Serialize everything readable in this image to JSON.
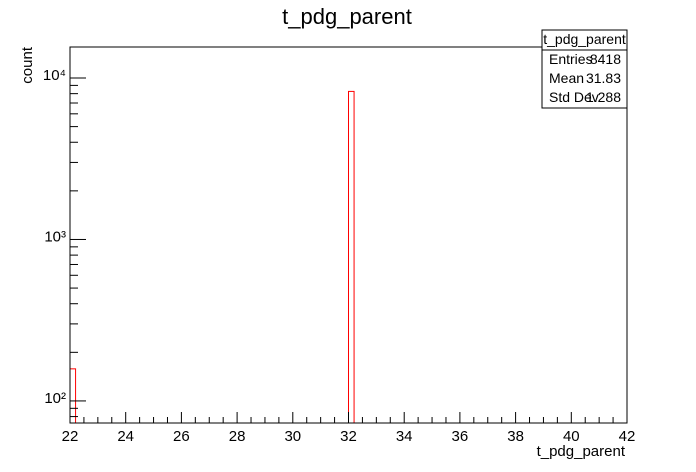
{
  "chart_data": {
    "type": "histogram",
    "title": "t_pdg_parent",
    "x_label": "t_pdg_parent",
    "y_label": "count",
    "bins": [
      22,
      22.2,
      22.4,
      22.6,
      22.8,
      23,
      23.2,
      23.4,
      23.6,
      23.8,
      24,
      24.2,
      24.4,
      24.6,
      24.8,
      25,
      25.2,
      25.4,
      25.6,
      25.8,
      26,
      26.2,
      26.4,
      26.6,
      26.8,
      27,
      27.2,
      27.4,
      27.6,
      27.8,
      28,
      28.2,
      28.4,
      28.6,
      28.8,
      29,
      29.2,
      29.4,
      29.6,
      29.8,
      30,
      30.2,
      30.4,
      30.6,
      30.8,
      31,
      31.2,
      31.4,
      31.6,
      31.8,
      32,
      32.2,
      32.4,
      32.6,
      32.8,
      33,
      33.2,
      33.4,
      33.6,
      33.8,
      34,
      34.2,
      34.4,
      34.6,
      34.8,
      35,
      35.2,
      35.4,
      35.6,
      35.8,
      36,
      36.2,
      36.4,
      36.6,
      36.8,
      37,
      37.2,
      37.4,
      37.6,
      37.8,
      38,
      38.2,
      38.4,
      38.6,
      38.8,
      39,
      39.2,
      39.4,
      39.6,
      39.8,
      40,
      40.2,
      40.4,
      40.6,
      40.8,
      41,
      41.2,
      41.4,
      41.6,
      41.8,
      42
    ],
    "values": [
      158,
      0,
      0,
      0,
      0,
      0,
      0,
      0,
      0,
      0,
      0,
      0,
      0,
      0,
      0,
      0,
      0,
      0,
      0,
      0,
      0,
      0,
      0,
      0,
      0,
      0,
      0,
      0,
      0,
      0,
      0,
      0,
      0,
      0,
      0,
      0,
      0,
      0,
      0,
      0,
      0,
      0,
      0,
      0,
      0,
      0,
      0,
      0,
      0,
      0,
      8260,
      0,
      0,
      0,
      0,
      0,
      0,
      0,
      0,
      0,
      0,
      0,
      0,
      0,
      0,
      0,
      0,
      0,
      0,
      0,
      0,
      0,
      0,
      0,
      0,
      0,
      0,
      0,
      0,
      0,
      0,
      0,
      0,
      0,
      0,
      0,
      0,
      0,
      0,
      0,
      0,
      0,
      0,
      0,
      0,
      0,
      0,
      0,
      0,
      0
    ],
    "color": "#ff0000",
    "xlim": [
      22,
      42
    ],
    "xticks": [
      22,
      24,
      26,
      28,
      30,
      32,
      34,
      36,
      38,
      40,
      42
    ],
    "ylim": [
      73,
      15560
    ],
    "log_y": true,
    "yticks": [
      {
        "value": 100,
        "label": "10²"
      },
      {
        "value": 1000,
        "label": "10³"
      },
      {
        "value": 10000,
        "label": "10⁴"
      }
    ],
    "stats": {
      "title": "t_pdg_parent",
      "rows": [
        [
          "Entries",
          "8418"
        ],
        [
          "Mean",
          "31.83"
        ],
        [
          "Std Dev",
          "1.288"
        ]
      ]
    }
  }
}
